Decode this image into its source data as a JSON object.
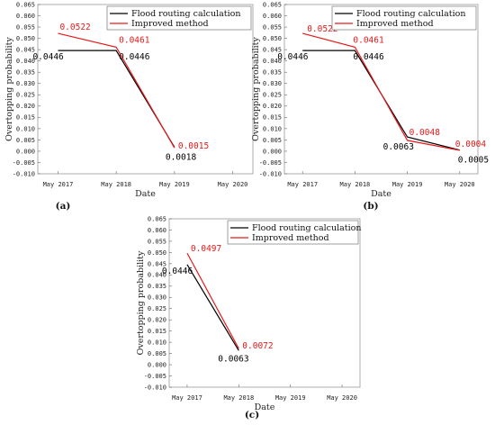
{
  "chart_data": [
    {
      "type": "line",
      "panel_label": "(a)",
      "xlabel": "Date",
      "ylabel": "Overtopping probability",
      "categories": [
        "May 2017",
        "May 2018",
        "May 2019",
        "May 2020"
      ],
      "ylim": [
        -0.01,
        0.065
      ],
      "yticks": [
        "0.065",
        "0.060",
        "0.055",
        "0.050",
        "0.045",
        "0.040",
        "0.035",
        "0.030",
        "0.025",
        "0.020",
        "0.015",
        "0.010",
        "0.005",
        "0.000",
        "-0.005",
        "-0.010"
      ],
      "legend_position": "top-right",
      "series": [
        {
          "name": "Flood routing calculation",
          "color": "#000000",
          "values": [
            0.0446,
            0.0446,
            0.0018,
            null
          ],
          "labels": [
            "0.0446",
            "0.0446",
            "0.0018",
            null
          ]
        },
        {
          "name": "Improved method",
          "color": "#e8191a",
          "values": [
            0.0522,
            0.0461,
            0.0015,
            null
          ],
          "labels": [
            "0.0522",
            "0.0461",
            "0.0015",
            null
          ]
        }
      ]
    },
    {
      "type": "line",
      "panel_label": "(b)",
      "xlabel": "Date",
      "ylabel": "Overtopping probability",
      "categories": [
        "May 2017",
        "May 2018",
        "May 2019",
        "May 2020"
      ],
      "ylim": [
        -0.01,
        0.065
      ],
      "yticks": [
        "0.065",
        "0.060",
        "0.055",
        "0.050",
        "0.045",
        "0.040",
        "0.035",
        "0.030",
        "0.025",
        "0.020",
        "0.015",
        "0.010",
        "0.005",
        "0.000",
        "-0.005",
        "-0.010"
      ],
      "legend_position": "top-right",
      "series": [
        {
          "name": "Flood routing calculation",
          "color": "#000000",
          "values": [
            0.0446,
            0.0446,
            0.0063,
            0.0005
          ],
          "labels": [
            "0.0446",
            "0.0446",
            "0.0063",
            "0.0005"
          ]
        },
        {
          "name": "Improved method",
          "color": "#e8191a",
          "values": [
            0.0522,
            0.0461,
            0.0048,
            0.0004
          ],
          "labels": [
            "0.0522",
            "0.0461",
            "0.0048",
            "0.0004"
          ]
        }
      ]
    },
    {
      "type": "line",
      "panel_label": "(c)",
      "xlabel": "Date",
      "ylabel": "Overtopping probability",
      "categories": [
        "May 2017",
        "May 2018",
        "May 2019",
        "May 2020"
      ],
      "ylim": [
        -0.01,
        0.065
      ],
      "yticks": [
        "0.065",
        "0.060",
        "0.055",
        "0.050",
        "0.045",
        "0.040",
        "0.035",
        "0.030",
        "0.025",
        "0.020",
        "0.015",
        "0.010",
        "0.005",
        "0.000",
        "-0.005",
        "-0.010"
      ],
      "legend_position": "top-right",
      "series": [
        {
          "name": "Flood routing calculation",
          "color": "#000000",
          "values": [
            0.0446,
            0.0063,
            null,
            null
          ],
          "labels": [
            "0.0446",
            "0.0063",
            null,
            null
          ]
        },
        {
          "name": "Improved method",
          "color": "#e8191a",
          "values": [
            0.0497,
            0.0072,
            null,
            null
          ],
          "labels": [
            "0.0497",
            "0.0072",
            null,
            null
          ]
        }
      ]
    }
  ]
}
